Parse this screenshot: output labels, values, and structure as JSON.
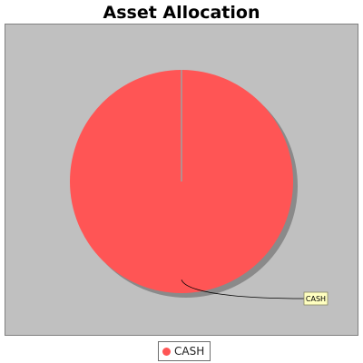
{
  "chart_data": {
    "type": "pie",
    "title": "Asset Allocation",
    "categories": [
      "CASH"
    ],
    "values": [
      100
    ],
    "colors": [
      "#ff5555"
    ],
    "slice_labels": [
      "CASH"
    ],
    "legend": {
      "entries": [
        "CASH"
      ],
      "placement": "bottom-center"
    },
    "background": "#c0c0c0",
    "shadow": true
  }
}
